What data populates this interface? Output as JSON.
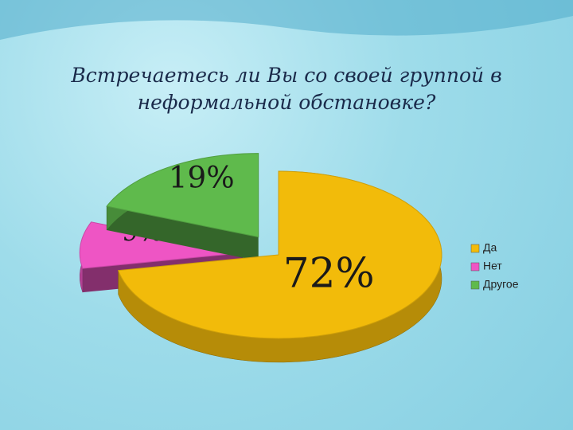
{
  "chart_data": {
    "type": "pie3d",
    "title": "Встречаетесь ли Вы со своей группой в неформальной обстановке?",
    "categories": [
      "Да",
      "Нет",
      "Другое"
    ],
    "values": [
      72,
      9,
      19
    ],
    "value_labels": [
      "72%",
      "9%",
      "19%"
    ],
    "colors": [
      "#f2bb0a",
      "#ee55c4",
      "#5fba4c"
    ],
    "legend": "right"
  }
}
